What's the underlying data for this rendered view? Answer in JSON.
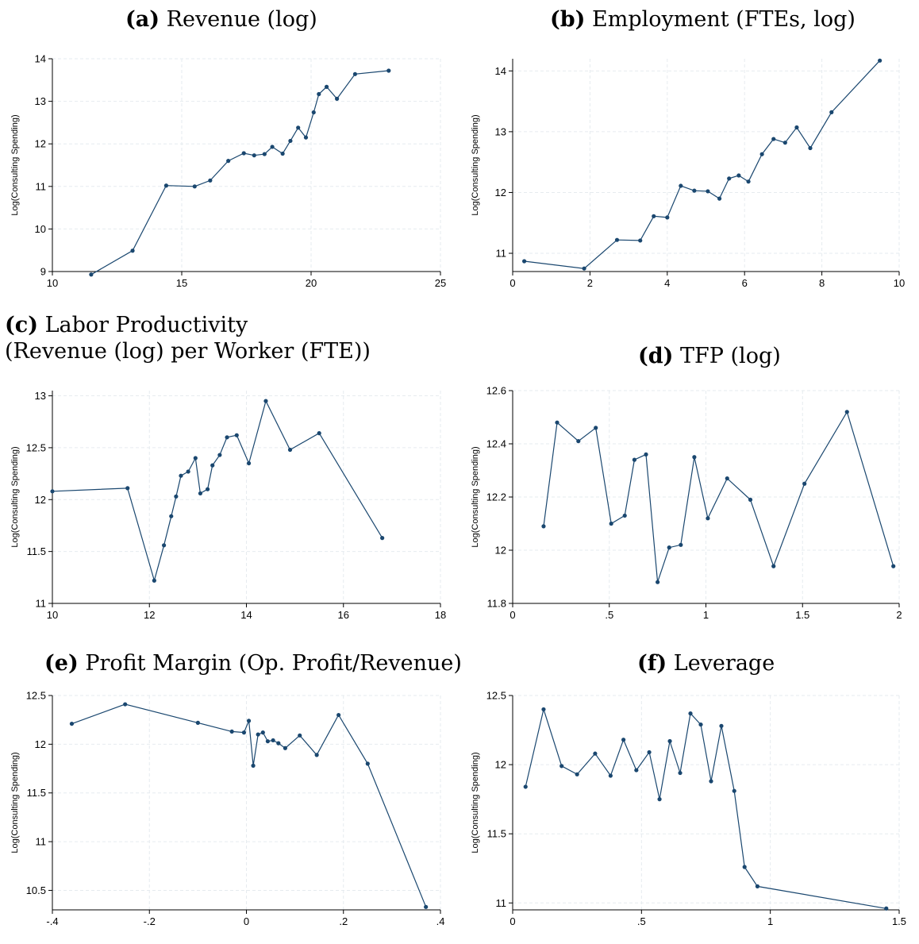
{
  "chart_data": [
    {
      "type": "line",
      "panel_letter": "(a)",
      "title": "Revenue (log)",
      "ylabel": "Log(Consulting Spending)",
      "xlabel": "",
      "xlim": [
        10,
        25
      ],
      "ylim": [
        9,
        14
      ],
      "xticks": [
        10,
        15,
        20,
        25
      ],
      "xtick_labels": [
        "10",
        "15",
        "20",
        "25"
      ],
      "yticks": [
        9,
        10,
        11,
        12,
        13,
        14
      ],
      "ytick_labels": [
        "9",
        "10",
        "11",
        "12",
        "13",
        "14"
      ],
      "grid": true,
      "x": [
        11.5,
        13.1,
        14.4,
        15.5,
        16.1,
        16.8,
        17.4,
        17.8,
        18.2,
        18.5,
        18.9,
        19.2,
        19.5,
        19.8,
        20.1,
        20.3,
        20.6,
        21.0,
        21.7,
        23.0
      ],
      "y": [
        8.93,
        9.49,
        11.02,
        11.0,
        11.14,
        11.6,
        11.78,
        11.73,
        11.76,
        11.93,
        11.77,
        12.07,
        12.38,
        12.15,
        12.74,
        13.17,
        13.34,
        13.06,
        13.64,
        13.72
      ]
    },
    {
      "type": "line",
      "panel_letter": "(b)",
      "title": "Employment (FTEs, log)",
      "ylabel": "Log(Consulting Spending)",
      "xlabel": "",
      "xlim": [
        0,
        10
      ],
      "ylim": [
        10.7,
        14.2
      ],
      "xticks": [
        0,
        2,
        4,
        6,
        8,
        10
      ],
      "xtick_labels": [
        "0",
        "2",
        "4",
        "6",
        "8",
        "10"
      ],
      "yticks": [
        11,
        12,
        13,
        14
      ],
      "ytick_labels": [
        "11",
        "12",
        "13",
        "14"
      ],
      "grid": true,
      "x": [
        0.3,
        1.85,
        2.7,
        3.3,
        3.65,
        4.0,
        4.35,
        4.7,
        5.05,
        5.35,
        5.6,
        5.85,
        6.1,
        6.45,
        6.75,
        7.05,
        7.35,
        7.7,
        8.25,
        9.5
      ],
      "y": [
        10.87,
        10.75,
        11.22,
        11.21,
        11.61,
        11.59,
        12.11,
        12.03,
        12.02,
        11.9,
        12.23,
        12.28,
        12.18,
        12.63,
        12.88,
        12.82,
        13.07,
        12.73,
        13.32,
        14.17
      ]
    },
    {
      "type": "line",
      "panel_letter": "(c)",
      "title": "Labor Productivity",
      "subtitle": "(Revenue (log) per Worker (FTE))",
      "ylabel": "Log(Consulting Spending)",
      "xlabel": "",
      "xlim": [
        10,
        18
      ],
      "ylim": [
        11,
        13.05
      ],
      "xticks": [
        10,
        12,
        14,
        16,
        18
      ],
      "xtick_labels": [
        "10",
        "12",
        "14",
        "16",
        "18"
      ],
      "yticks": [
        11,
        11.5,
        12,
        12.5,
        13
      ],
      "ytick_labels": [
        "11",
        "11.5",
        "12",
        "12.5",
        "13"
      ],
      "grid": true,
      "x": [
        10.0,
        11.55,
        12.1,
        12.3,
        12.45,
        12.55,
        12.65,
        12.8,
        12.95,
        13.05,
        13.2,
        13.3,
        13.45,
        13.6,
        13.8,
        14.05,
        14.4,
        14.9,
        15.5,
        16.8
      ],
      "y": [
        12.08,
        12.11,
        11.22,
        11.56,
        11.84,
        12.03,
        12.23,
        12.27,
        12.4,
        12.06,
        12.1,
        12.33,
        12.43,
        12.6,
        12.62,
        12.35,
        12.95,
        12.48,
        12.64,
        11.63
      ]
    },
    {
      "type": "line",
      "panel_letter": "(d)",
      "title": "TFP (log)",
      "ylabel": "Log(Consulting Spending)",
      "xlabel": "",
      "xlim": [
        0,
        2
      ],
      "ylim": [
        11.8,
        12.6
      ],
      "xticks": [
        0,
        0.5,
        1,
        1.5,
        2
      ],
      "xtick_labels": [
        "0",
        ".5",
        "1",
        "1.5",
        "2"
      ],
      "yticks": [
        11.8,
        12,
        12.2,
        12.4,
        12.6
      ],
      "ytick_labels": [
        "11.8",
        "12",
        "12.2",
        "12.4",
        "12.6"
      ],
      "grid": true,
      "x": [
        0.16,
        0.23,
        0.34,
        0.43,
        0.51,
        0.58,
        0.63,
        0.69,
        0.75,
        0.81,
        0.87,
        0.94,
        1.01,
        1.11,
        1.23,
        1.35,
        1.51,
        1.73,
        1.97
      ],
      "y": [
        12.09,
        12.48,
        12.41,
        12.46,
        12.1,
        12.13,
        12.34,
        12.36,
        11.88,
        12.01,
        12.02,
        12.35,
        12.12,
        12.27,
        12.19,
        11.94,
        12.25,
        12.52,
        11.94
      ]
    },
    {
      "type": "line",
      "panel_letter": "(e)",
      "title": "Profit Margin (Op. Profit/Revenue)",
      "ylabel": "Log(Consulting Spending)",
      "xlabel": "",
      "xlim": [
        -0.4,
        0.4
      ],
      "ylim": [
        10.3,
        12.5
      ],
      "xticks": [
        -0.4,
        -0.2,
        0,
        0.2,
        0.4
      ],
      "xtick_labels": [
        "-.4",
        "-.2",
        "0",
        ".2",
        ".4"
      ],
      "yticks": [
        10.5,
        11,
        11.5,
        12,
        12.5
      ],
      "ytick_labels": [
        "10.5",
        "11",
        "11.5",
        "12",
        "12.5"
      ],
      "grid": true,
      "x": [
        -0.36,
        -0.25,
        -0.1,
        -0.03,
        -0.005,
        0.005,
        0.014,
        0.024,
        0.034,
        0.044,
        0.055,
        0.066,
        0.08,
        0.11,
        0.145,
        0.19,
        0.25,
        0.37
      ],
      "y": [
        12.21,
        12.41,
        12.22,
        12.13,
        12.12,
        12.24,
        11.78,
        12.1,
        12.12,
        12.03,
        12.04,
        12.01,
        11.96,
        12.09,
        11.89,
        12.3,
        11.8,
        10.33
      ]
    },
    {
      "type": "line",
      "panel_letter": "(f)",
      "title": "Leverage",
      "ylabel": "Log(Consulting Spending)",
      "xlabel": "",
      "xlim": [
        0,
        1.5
      ],
      "ylim": [
        10.95,
        12.5
      ],
      "xticks": [
        0,
        0.5,
        1,
        1.5
      ],
      "xtick_labels": [
        "0",
        ".5",
        "1",
        "1.5"
      ],
      "yticks": [
        11,
        11.5,
        12,
        12.5
      ],
      "ytick_labels": [
        "11",
        "11.5",
        "12",
        "12.5"
      ],
      "grid": true,
      "x": [
        0.05,
        0.12,
        0.19,
        0.25,
        0.32,
        0.38,
        0.43,
        0.48,
        0.53,
        0.57,
        0.61,
        0.65,
        0.69,
        0.73,
        0.77,
        0.81,
        0.86,
        0.9,
        0.95,
        1.45
      ],
      "y": [
        11.84,
        12.4,
        11.99,
        11.93,
        12.08,
        11.92,
        12.18,
        11.96,
        12.09,
        11.75,
        12.17,
        11.94,
        12.37,
        12.29,
        11.88,
        12.28,
        11.81,
        11.26,
        11.12,
        10.96
      ]
    }
  ]
}
